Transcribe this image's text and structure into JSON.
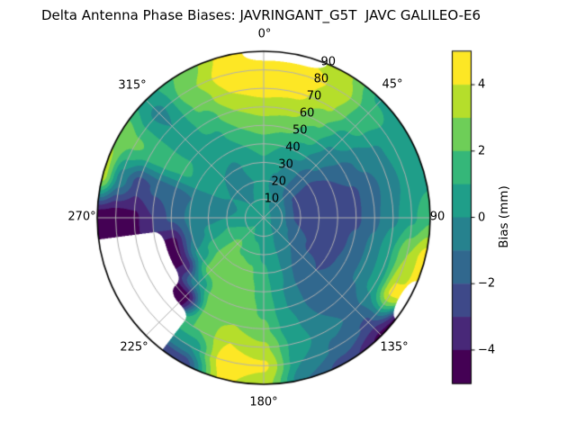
{
  "title": "Delta Antenna Phase Biases: JAVRINGANT_G5T  JAVC GALILEO-E6",
  "chart_data": {
    "type": "polar_filled_contour",
    "title": "Delta Antenna Phase Biases: JAVRINGANT_G5T  JAVC GALILEO-E6",
    "theta_zero": "top",
    "theta_direction": "clockwise",
    "theta_labels": [
      "0°",
      "45°",
      "90",
      "135°",
      "180°",
      "225°",
      "270°",
      "315°"
    ],
    "radial_tick_labels": [
      "10",
      "20",
      "30",
      "40",
      "50",
      "60",
      "70",
      "80",
      "90"
    ],
    "radial_range": [
      0,
      90
    ],
    "grid": "on",
    "grid_color": "#b0b0b0",
    "outline_color": "#000000",
    "no_data_color": "#ffffff",
    "colormap": "viridis",
    "levels": [
      -5,
      -4,
      -3,
      -2,
      -1,
      0,
      1,
      2,
      3,
      4,
      5
    ],
    "palette": [
      "#440154",
      "#482878",
      "#3e4989",
      "#31688e",
      "#26828e",
      "#1f9e89",
      "#35b779",
      "#6ece58",
      "#b5de2b",
      "#fde725"
    ],
    "azimuths_deg": [
      0,
      15,
      30,
      45,
      60,
      75,
      90,
      105,
      120,
      135,
      150,
      165,
      180,
      195,
      210,
      225,
      240,
      255,
      270,
      285,
      300,
      315,
      330,
      345
    ],
    "radii_deg": [
      0,
      10,
      20,
      30,
      40,
      50,
      60,
      70,
      80,
      90
    ],
    "bias_mm": [
      [
        0.4,
        0.3,
        0.3,
        0.8,
        1.5,
        2.5,
        3.5,
        4.5,
        4.7,
        null
      ],
      [
        0.4,
        0.1,
        -0.2,
        0.2,
        1.0,
        2.2,
        3.3,
        4.3,
        4.6,
        null
      ],
      [
        0.4,
        -0.2,
        -0.8,
        -0.5,
        0.3,
        1.4,
        2.2,
        3.2,
        3.8,
        3.2
      ],
      [
        0.4,
        -0.5,
        -1.5,
        -1.5,
        -0.8,
        -0.2,
        0.6,
        1.4,
        1.5,
        0.8
      ],
      [
        0.4,
        -0.7,
        -2.2,
        -2.5,
        -2.0,
        -1.4,
        -0.8,
        -0.2,
        0.4,
        0.5
      ],
      [
        0.4,
        -0.8,
        -2.5,
        -2.9,
        -2.8,
        -2.2,
        -1.4,
        -0.5,
        0.3,
        0.6
      ],
      [
        0.4,
        -0.9,
        -2.5,
        -2.9,
        -2.7,
        -2.2,
        -1.2,
        -0.2,
        0.8,
        1.8
      ],
      [
        0.4,
        -0.8,
        -2.0,
        -2.8,
        -2.6,
        -1.8,
        -0.8,
        0.8,
        3.0,
        4.6
      ],
      [
        0.4,
        -0.5,
        -1.5,
        -2.2,
        -2.2,
        -1.8,
        -0.8,
        0.5,
        4.2,
        null
      ],
      [
        0.4,
        -0.3,
        -1.0,
        -1.8,
        -2.0,
        -1.8,
        -1.5,
        -1.2,
        -2.2,
        -4.2
      ],
      [
        0.4,
        0.0,
        -0.5,
        -1.0,
        -1.2,
        -1.2,
        -1.0,
        -0.8,
        -1.2,
        -2.5
      ],
      [
        0.4,
        0.2,
        0.2,
        0.2,
        0.0,
        0.0,
        0.2,
        0.5,
        0.0,
        -1.0
      ],
      [
        0.4,
        0.4,
        0.8,
        1.2,
        1.5,
        1.8,
        2.2,
        3.2,
        4.2,
        3.5
      ],
      [
        0.4,
        0.8,
        1.5,
        2.2,
        2.6,
        2.8,
        3.0,
        4.0,
        4.7,
        4.2
      ],
      [
        0.4,
        1.0,
        1.8,
        2.5,
        2.8,
        3.0,
        2.8,
        2.0,
        0.0,
        -3.0
      ],
      [
        0.4,
        1.2,
        2.2,
        2.8,
        2.5,
        0.0,
        -4.5,
        null,
        null,
        null
      ],
      [
        0.4,
        1.0,
        1.8,
        1.5,
        0.3,
        -4.0,
        null,
        null,
        null,
        null
      ],
      [
        0.4,
        0.8,
        1.0,
        0.3,
        -1.0,
        -4.2,
        null,
        null,
        null,
        null
      ],
      [
        0.4,
        0.3,
        0.0,
        -0.3,
        -0.8,
        -1.8,
        -3.0,
        -4.2,
        -4.7,
        -4.8
      ],
      [
        0.4,
        0.2,
        -0.2,
        -0.5,
        -1.0,
        -1.5,
        -1.8,
        -2.5,
        -0.5,
        3.5
      ],
      [
        0.4,
        0.2,
        0.0,
        0.3,
        0.8,
        1.2,
        1.5,
        1.8,
        2.2,
        2.8
      ],
      [
        0.4,
        0.0,
        -0.2,
        0.0,
        0.5,
        0.8,
        0.3,
        0.0,
        -0.3,
        0.5
      ],
      [
        0.4,
        0.0,
        -0.3,
        -0.2,
        0.3,
        0.8,
        1.5,
        2.2,
        2.8,
        2.2
      ],
      [
        0.4,
        0.2,
        0.0,
        0.3,
        1.0,
        2.0,
        3.0,
        4.0,
        4.5,
        4.2
      ]
    ],
    "colorbar": {
      "label": "Bias (mm)",
      "tick_labels": [
        "4",
        "2",
        "0",
        "−2",
        "−4"
      ],
      "tick_values": [
        4,
        2,
        0,
        -2,
        -4
      ],
      "vmin": -5,
      "vmax": 5,
      "legend_position": "right"
    }
  }
}
